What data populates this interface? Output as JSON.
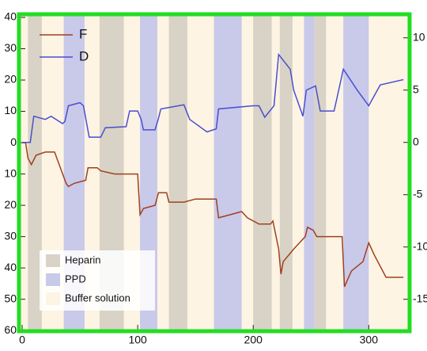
{
  "chart_data": {
    "type": "line",
    "xlim": [
      -1.4,
      334
    ],
    "xticks": [
      0,
      100,
      200,
      300
    ],
    "ylim": [
      -59.7,
      40.5
    ],
    "yticks": [
      {
        "value": -60,
        "label": "60"
      },
      {
        "value": -50,
        "label": "50"
      },
      {
        "value": -40,
        "label": "40"
      },
      {
        "value": -30,
        "label": "30"
      },
      {
        "value": -20,
        "label": "20"
      },
      {
        "value": -10,
        "label": "10"
      },
      0,
      10,
      20,
      30,
      40
    ],
    "y2lim": [
      -17.9,
      12.1
    ],
    "y2ticks": [
      -15,
      -10,
      -5,
      0,
      5,
      10
    ],
    "band_legend": [
      {
        "name": "Heparin",
        "color": "#d8d3c6"
      },
      {
        "name": "PPD",
        "color": "#c9c9ea"
      },
      {
        "name": "Buffer solution",
        "color": "#fdf4e3"
      }
    ],
    "bands": [
      {
        "name": "Heparin",
        "x": [
          5,
          17
        ]
      },
      {
        "name": "PPD",
        "x": [
          36,
          54
        ]
      },
      {
        "name": "Heparin",
        "x": [
          67,
          88
        ]
      },
      {
        "name": "PPD",
        "x": [
          102,
          117
        ]
      },
      {
        "name": "Heparin",
        "x": [
          127,
          143
        ]
      },
      {
        "name": "PPD",
        "x": [
          166,
          190
        ]
      },
      {
        "name": "Heparin",
        "x": [
          200,
          216
        ]
      },
      {
        "name": "Heparin",
        "x": [
          223,
          234
        ]
      },
      {
        "name": "PPD",
        "x": [
          244,
          253
        ]
      },
      {
        "name": "Heparin",
        "x": [
          253,
          263
        ]
      },
      {
        "name": "PPD",
        "x": [
          278,
          300
        ]
      }
    ],
    "series": [
      {
        "name": "F",
        "color": "#a0401f",
        "axis": "y",
        "x": [
          0,
          3,
          5,
          8,
          12,
          20,
          28,
          38,
          40,
          45,
          55,
          57,
          65,
          68,
          80,
          100,
          102,
          105,
          115,
          118,
          125,
          127,
          140,
          150,
          168,
          170,
          180,
          190,
          195,
          205,
          215,
          217,
          222,
          224,
          226,
          235,
          245,
          247,
          252,
          255,
          270,
          277,
          279,
          285,
          295,
          300,
          305,
          315,
          330
        ],
        "values": [
          0,
          0,
          -5,
          -7,
          -4,
          -3,
          -3,
          -13,
          -14,
          -13,
          -12,
          -8,
          -8,
          -9,
          -10,
          -10,
          -23,
          -21,
          -20,
          -16,
          -16,
          -19,
          -19,
          -18,
          -18,
          -24,
          -23,
          -22,
          -24,
          -26,
          -26,
          -25,
          -34,
          -42,
          -38,
          -34,
          -30,
          -27,
          -28,
          -30,
          -30,
          -30,
          -46,
          -41,
          -38,
          -32,
          -36,
          -43,
          -43
        ]
      },
      {
        "name": "D",
        "color": "#4a4ed0",
        "axis": "y2",
        "x": [
          0,
          7,
          10,
          20,
          25,
          35,
          37,
          40,
          50,
          53,
          58,
          68,
          72,
          90,
          93,
          100,
          103,
          105,
          115,
          118,
          120,
          140,
          145,
          160,
          168,
          170,
          200,
          205,
          210,
          218,
          220,
          222,
          232,
          235,
          243,
          246,
          254,
          258,
          270,
          275,
          278,
          290,
          300,
          310,
          330
        ],
        "values": [
          0,
          0,
          2.5,
          2.2,
          2.5,
          1.8,
          2,
          3.5,
          3.8,
          3.5,
          0.5,
          0.5,
          1.4,
          1.5,
          3,
          3,
          2.2,
          1.2,
          1.2,
          2.3,
          3.2,
          3.6,
          2.2,
          1,
          1.3,
          3.2,
          3.5,
          3.5,
          2.4,
          3.5,
          6,
          8.4,
          7,
          5,
          2.5,
          5,
          5.4,
          3,
          3,
          5.5,
          7,
          5,
          3.5,
          5.5,
          6
        ]
      }
    ]
  }
}
